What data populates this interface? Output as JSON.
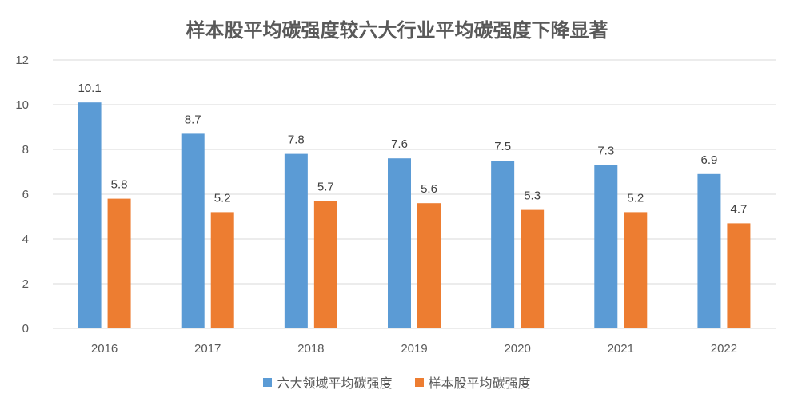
{
  "chart_data": {
    "type": "bar",
    "title": "样本股平均碳强度较六大行业平均碳强度下降显著",
    "categories": [
      "2016",
      "2017",
      "2018",
      "2019",
      "2020",
      "2021",
      "2022"
    ],
    "series": [
      {
        "name": "六大领域平均碳强度",
        "color": "#5B9BD5",
        "values": [
          10.1,
          8.7,
          7.8,
          7.6,
          7.5,
          7.3,
          6.9
        ]
      },
      {
        "name": "样本股平均碳强度",
        "color": "#ED7D31",
        "values": [
          5.8,
          5.2,
          5.7,
          5.6,
          5.3,
          5.2,
          4.7
        ]
      }
    ],
    "ylim": [
      0,
      12
    ],
    "yticks": [
      "0",
      "2",
      "4",
      "6",
      "8",
      "10",
      "12"
    ],
    "grid": true,
    "legend": "bottom"
  }
}
